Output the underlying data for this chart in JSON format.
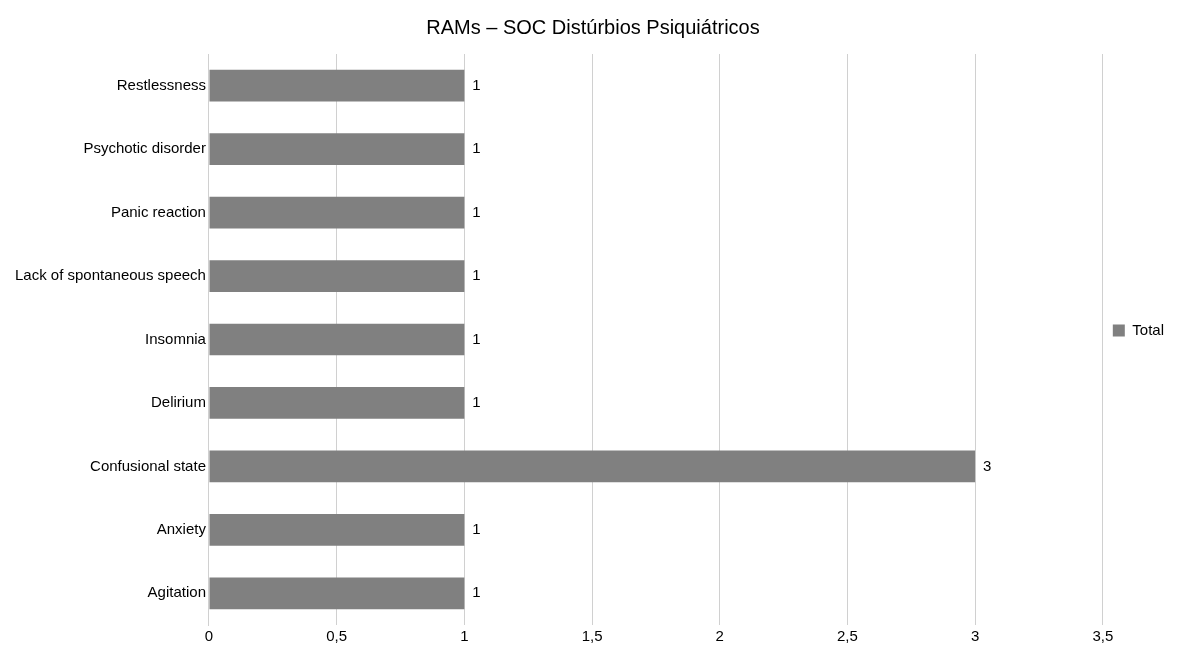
{
  "chart_data": {
    "type": "bar",
    "title": "RAMs – SOC Distúrbios Psiquiátricos",
    "orientation": "horizontal",
    "categories": [
      "Restlessness",
      "Psychotic disorder",
      "Panic reaction",
      "Lack of spontaneous speech",
      "Insomnia",
      "Delirium",
      "Confusional state",
      "Anxiety",
      "Agitation"
    ],
    "series": [
      {
        "name": "Total",
        "color": "#808080",
        "values": [
          1,
          1,
          1,
          1,
          1,
          1,
          3,
          1,
          1
        ]
      }
    ],
    "xlim": [
      0,
      3.5
    ],
    "xticks": [
      0,
      {
        "value": 0.5,
        "label": "0,5"
      },
      1,
      {
        "value": 1.5,
        "label": "1,5"
      },
      2,
      {
        "value": 2.5,
        "label": "2,5"
      },
      3,
      {
        "value": 3.5,
        "label": "3,5"
      }
    ],
    "grid": "x",
    "legend": "right",
    "data_labels": true
  }
}
